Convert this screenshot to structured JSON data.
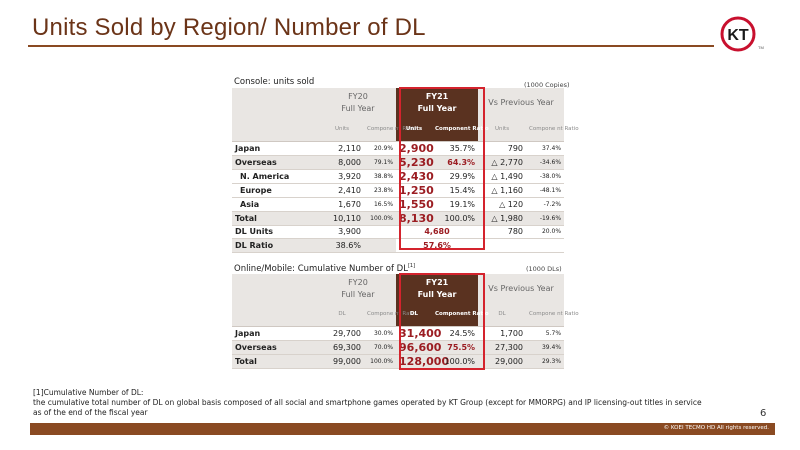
{
  "page": {
    "title": "Units Sold by Region/ Number of DL",
    "page_number": "6",
    "copyright": "© KOEI TECMO HD All rights reserved.",
    "footnote_lines": [
      "[1]Cumulative Number of DL:",
      "the cumulative total number of DL on global basis composed of all social and smartphone games operated by KT Group (except for MMORPG) and IP licensing-out titles in service",
      "as of the end of the fiscal year"
    ]
  },
  "logo": {
    "text": "KT",
    "trademark": "TM",
    "color": "#c8102e"
  },
  "console": {
    "label": "Console: units sold",
    "unit": "(1000 Copies)",
    "headers": {
      "fy20": "FY20",
      "fy20_sub": "Full Year",
      "fy21": "FY21",
      "fy21_sub": "Full Year",
      "vs": "Vs Previous Year",
      "units": "Units",
      "ratio": "Compone nt Ratio",
      "units_fy21": "Units",
      "ratio_fy21": "Component Ratio",
      "units_vs": "Units",
      "ratio_vs": "Compone nt Ratio"
    },
    "rows": [
      {
        "label": "Japan",
        "fy20_units": "2,110",
        "fy20_ratio": "20.9%",
        "fy21_units": "2,900",
        "fy21_ratio": "35.7%",
        "vs_units": "790",
        "vs_ratio": "37.4%"
      },
      {
        "label": "Overseas",
        "fy20_units": "8,000",
        "fy20_ratio": "79.1%",
        "fy21_units": "5,230",
        "fy21_ratio": "64.3%",
        "vs_units": "△ 2,770",
        "vs_ratio": "-34.6%"
      },
      {
        "label": "N. America",
        "fy20_units": "3,920",
        "fy20_ratio": "38.8%",
        "fy21_units": "2,430",
        "fy21_ratio": "29.9%",
        "vs_units": "△ 1,490",
        "vs_ratio": "-38.0%"
      },
      {
        "label": "Europe",
        "fy20_units": "2,410",
        "fy20_ratio": "23.8%",
        "fy21_units": "1,250",
        "fy21_ratio": "15.4%",
        "vs_units": "△ 1,160",
        "vs_ratio": "-48.1%"
      },
      {
        "label": "Asia",
        "fy20_units": "1,670",
        "fy20_ratio": "16.5%",
        "fy21_units": "1,550",
        "fy21_ratio": "19.1%",
        "vs_units": "△ 120",
        "vs_ratio": "-7.2%"
      },
      {
        "label": "Total",
        "fy20_units": "10,110",
        "fy20_ratio": "100.0%",
        "fy21_units": "8,130",
        "fy21_ratio": "100.0%",
        "vs_units": "△ 1,980",
        "vs_ratio": "-19.6%"
      }
    ],
    "dl_units": {
      "label": "DL Units",
      "fy20": "3,900",
      "fy21": "4,680",
      "vs_units": "780",
      "vs_ratio": "20.0%"
    },
    "dl_ratio": {
      "label": "DL Ratio",
      "fy20": "38.6%",
      "fy21": "57.6%"
    }
  },
  "online": {
    "label": "Online/Mobile: Cumulative Number of DL",
    "label_sup": "[1]",
    "unit": "(1000 DLs)",
    "headers": {
      "fy20": "FY20",
      "fy20_sub": "Full Year",
      "fy21": "FY21",
      "fy21_sub": "Full Year",
      "vs": "Vs Previous Year",
      "dl": "DL",
      "ratio": "Compone nt Ratio",
      "dl_fy21": "DL",
      "ratio_fy21": "Component Ratio",
      "dl_vs": "DL",
      "ratio_vs": "Compone nt Ratio"
    },
    "rows": [
      {
        "label": "Japan",
        "fy20_dl": "29,700",
        "fy20_ratio": "30.0%",
        "fy21_dl": "31,400",
        "fy21_ratio": "24.5%",
        "vs_dl": "1,700",
        "vs_ratio": "5.7%"
      },
      {
        "label": "Overseas",
        "fy20_dl": "69,300",
        "fy20_ratio": "70.0%",
        "fy21_dl": "96,600",
        "fy21_ratio": "75.5%",
        "vs_dl": "27,300",
        "vs_ratio": "39.4%"
      },
      {
        "label": "Total",
        "fy20_dl": "99,000",
        "fy20_ratio": "100.0%",
        "fy21_dl": "128,000",
        "fy21_ratio": "100.0%",
        "vs_dl": "29,000",
        "vs_ratio": "29.3%"
      }
    ]
  }
}
